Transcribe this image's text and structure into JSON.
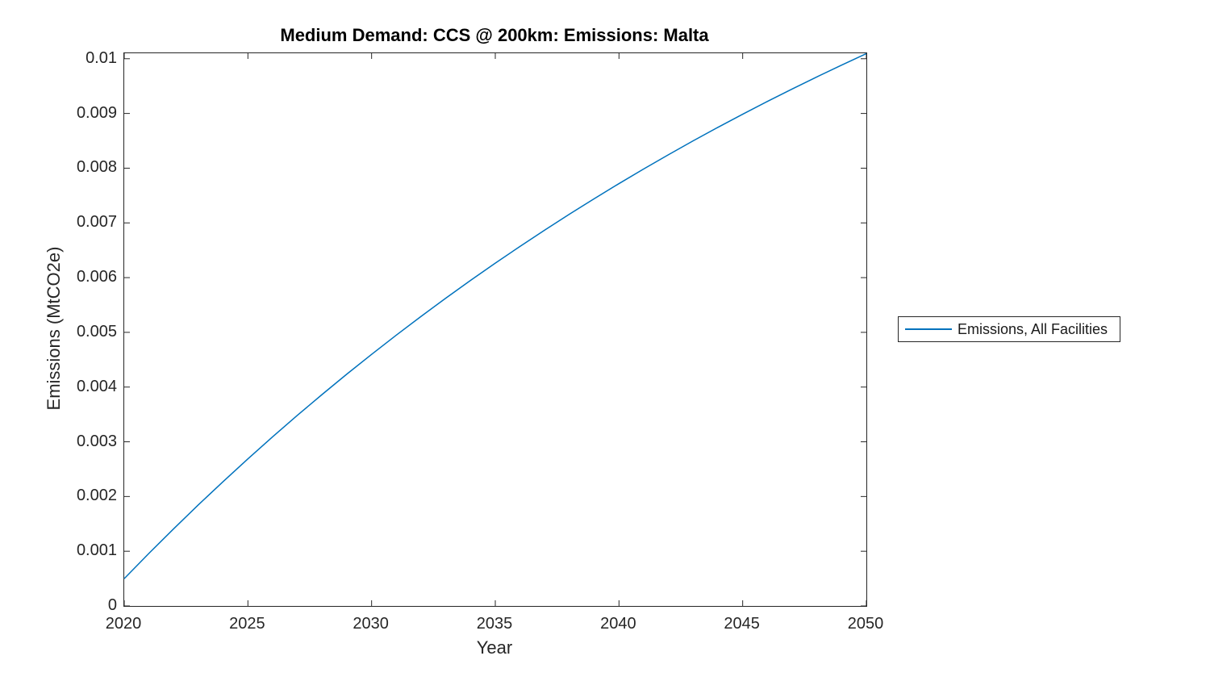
{
  "colors": {
    "line": "#0072BD",
    "axis": "#262626",
    "tick_text": "#262626",
    "title_text": "#000000",
    "background": "#ffffff"
  },
  "legend": {
    "items": [
      {
        "label": "Emissions, All Facilities",
        "color": "#0072BD"
      }
    ],
    "position": "right-outside"
  },
  "chart_data": {
    "type": "line",
    "title": "Medium Demand: CCS @ 200km: Emissions: Malta",
    "xlabel": "Year",
    "ylabel": "Emissions (MtCO2e)",
    "xlim": [
      2020,
      2050
    ],
    "ylim": [
      0,
      0.0101
    ],
    "x_ticks": [
      2020,
      2025,
      2030,
      2035,
      2040,
      2045,
      2050
    ],
    "x_tick_labels": [
      "2020",
      "2025",
      "2030",
      "2035",
      "2040",
      "2045",
      "2050"
    ],
    "y_ticks": [
      0,
      0.001,
      0.002,
      0.003,
      0.004,
      0.005,
      0.006,
      0.007,
      0.008,
      0.009,
      0.01
    ],
    "y_tick_labels": [
      "0",
      "0.001",
      "0.002",
      "0.003",
      "0.004",
      "0.005",
      "0.006",
      "0.007",
      "0.008",
      "0.009",
      "0.01"
    ],
    "grid": false,
    "box": true,
    "legend_position": "right-outside",
    "series": [
      {
        "name": "Emissions, All Facilities",
        "color": "#0072BD",
        "x": [
          2020,
          2021,
          2022,
          2023,
          2024,
          2025,
          2026,
          2027,
          2028,
          2029,
          2030,
          2031,
          2032,
          2033,
          2034,
          2035,
          2036,
          2037,
          2038,
          2039,
          2040,
          2041,
          2042,
          2043,
          2044,
          2045,
          2046,
          2047,
          2048,
          2049,
          2050
        ],
        "y": [
          0.0005,
          0.000962,
          0.001411,
          0.001849,
          0.002274,
          0.002688,
          0.003091,
          0.003484,
          0.003865,
          0.004237,
          0.004598,
          0.00495,
          0.005292,
          0.005625,
          0.005949,
          0.006264,
          0.006571,
          0.006869,
          0.00716,
          0.007443,
          0.007718,
          0.007986,
          0.008246,
          0.0085,
          0.008746,
          0.008986,
          0.00922,
          0.009447,
          0.009668,
          0.009884,
          0.010093
        ]
      }
    ]
  }
}
